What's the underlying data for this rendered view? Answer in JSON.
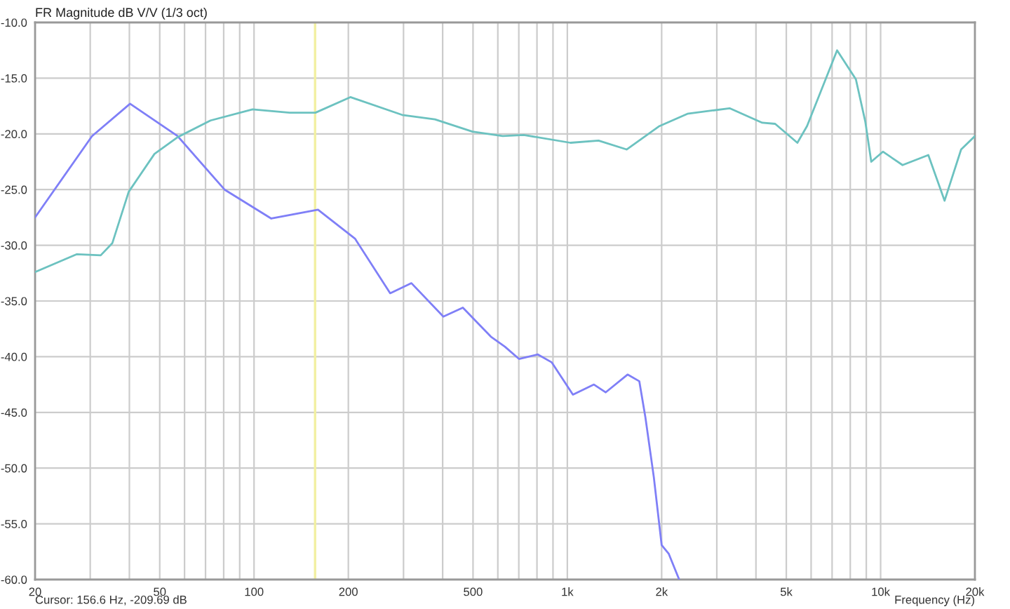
{
  "chart_data": {
    "type": "line",
    "title": "FR Magnitude dB V/V (1/3 oct)",
    "xlabel": "Frequency (Hz)",
    "annotations": [
      "Cursor: 156.6 Hz, -209.69 dB"
    ],
    "log": "x",
    "xlim": [
      20,
      20000
    ],
    "ylim": [
      -60,
      -10
    ],
    "xticks": [
      {
        "value": 20,
        "label": "20"
      },
      {
        "value": 30,
        "label": null
      },
      {
        "value": 40,
        "label": null
      },
      {
        "value": 50,
        "label": "50"
      },
      {
        "value": 60,
        "label": null
      },
      {
        "value": 70,
        "label": null
      },
      {
        "value": 80,
        "label": null
      },
      {
        "value": 90,
        "label": null
      },
      {
        "value": 100,
        "label": "100"
      },
      {
        "value": 200,
        "label": "200"
      },
      {
        "value": 300,
        "label": null
      },
      {
        "value": 400,
        "label": null
      },
      {
        "value": 500,
        "label": "500"
      },
      {
        "value": 600,
        "label": null
      },
      {
        "value": 700,
        "label": null
      },
      {
        "value": 800,
        "label": null
      },
      {
        "value": 900,
        "label": null
      },
      {
        "value": 1000,
        "label": "1k"
      },
      {
        "value": 2000,
        "label": "2k"
      },
      {
        "value": 3000,
        "label": null
      },
      {
        "value": 4000,
        "label": null
      },
      {
        "value": 5000,
        "label": "5k"
      },
      {
        "value": 6000,
        "label": null
      },
      {
        "value": 7000,
        "label": null
      },
      {
        "value": 8000,
        "label": null
      },
      {
        "value": 9000,
        "label": null
      },
      {
        "value": 10000,
        "label": "10k"
      },
      {
        "value": 20000,
        "label": "20k"
      }
    ],
    "yticks": [
      {
        "value": -60,
        "label": "-60.0"
      },
      {
        "value": -55,
        "label": "-55.0"
      },
      {
        "value": -50,
        "label": "-50.0"
      },
      {
        "value": -45,
        "label": "-45.0"
      },
      {
        "value": -40,
        "label": "-40.0"
      },
      {
        "value": -35,
        "label": "-35.0"
      },
      {
        "value": -30,
        "label": "-30.0"
      },
      {
        "value": -25,
        "label": "-25.0"
      },
      {
        "value": -20,
        "label": "-20.0"
      },
      {
        "value": -15,
        "label": "-15.0"
      },
      {
        "value": -10,
        "label": "-10.0"
      }
    ],
    "grid": true,
    "ref_lines": [
      {
        "axis": "x",
        "value": 156.6,
        "label": null,
        "color": "#f2f0a0"
      }
    ],
    "series": [
      {
        "color": "#7f7ff7",
        "x": [
          20,
          30.4,
          40.2,
          57,
          80.5,
          113.5,
          160,
          210,
          272,
          318,
          402,
          464,
          570,
          632,
          701,
          805,
          891,
          1042,
          1216,
          1325,
          1557,
          1697,
          1774,
          1888,
          2000,
          2108,
          2275
        ],
        "values": [
          -27.5,
          -20.2,
          -17.3,
          -20.2,
          -25.0,
          -27.6,
          -26.8,
          -29.4,
          -34.3,
          -33.4,
          -36.4,
          -35.6,
          -38.2,
          -39.1,
          -40.2,
          -39.8,
          -40.5,
          -43.4,
          -42.5,
          -43.2,
          -41.6,
          -42.2,
          -45.4,
          -50.8,
          -56.9,
          -57.7,
          -60
        ]
      },
      {
        "color": "#6cc2c0",
        "x": [
          20,
          27.2,
          32.4,
          35.3,
          39.8,
          48.1,
          57,
          72.6,
          98.9,
          130,
          157,
          203,
          297,
          378,
          498,
          622,
          726,
          1023,
          1258,
          1546,
          1968,
          2417,
          3296,
          4191,
          4606,
          5424,
          5822,
          7262,
          8337,
          8935,
          9335,
          10170,
          11750,
          14200,
          16000,
          18070,
          20000
        ],
        "values": [
          -32.4,
          -30.8,
          -30.9,
          -29.8,
          -25.2,
          -21.8,
          -20.3,
          -18.8,
          -17.8,
          -18.1,
          -18.1,
          -16.7,
          -18.3,
          -18.7,
          -19.8,
          -20.2,
          -20.1,
          -20.8,
          -20.6,
          -21.4,
          -19.3,
          -18.2,
          -17.7,
          -19.0,
          -19.1,
          -20.8,
          -19.3,
          -12.5,
          -15.1,
          -18.9,
          -22.5,
          -21.6,
          -22.8,
          -21.9,
          -26.0,
          -21.4,
          -20.2
        ]
      }
    ]
  }
}
